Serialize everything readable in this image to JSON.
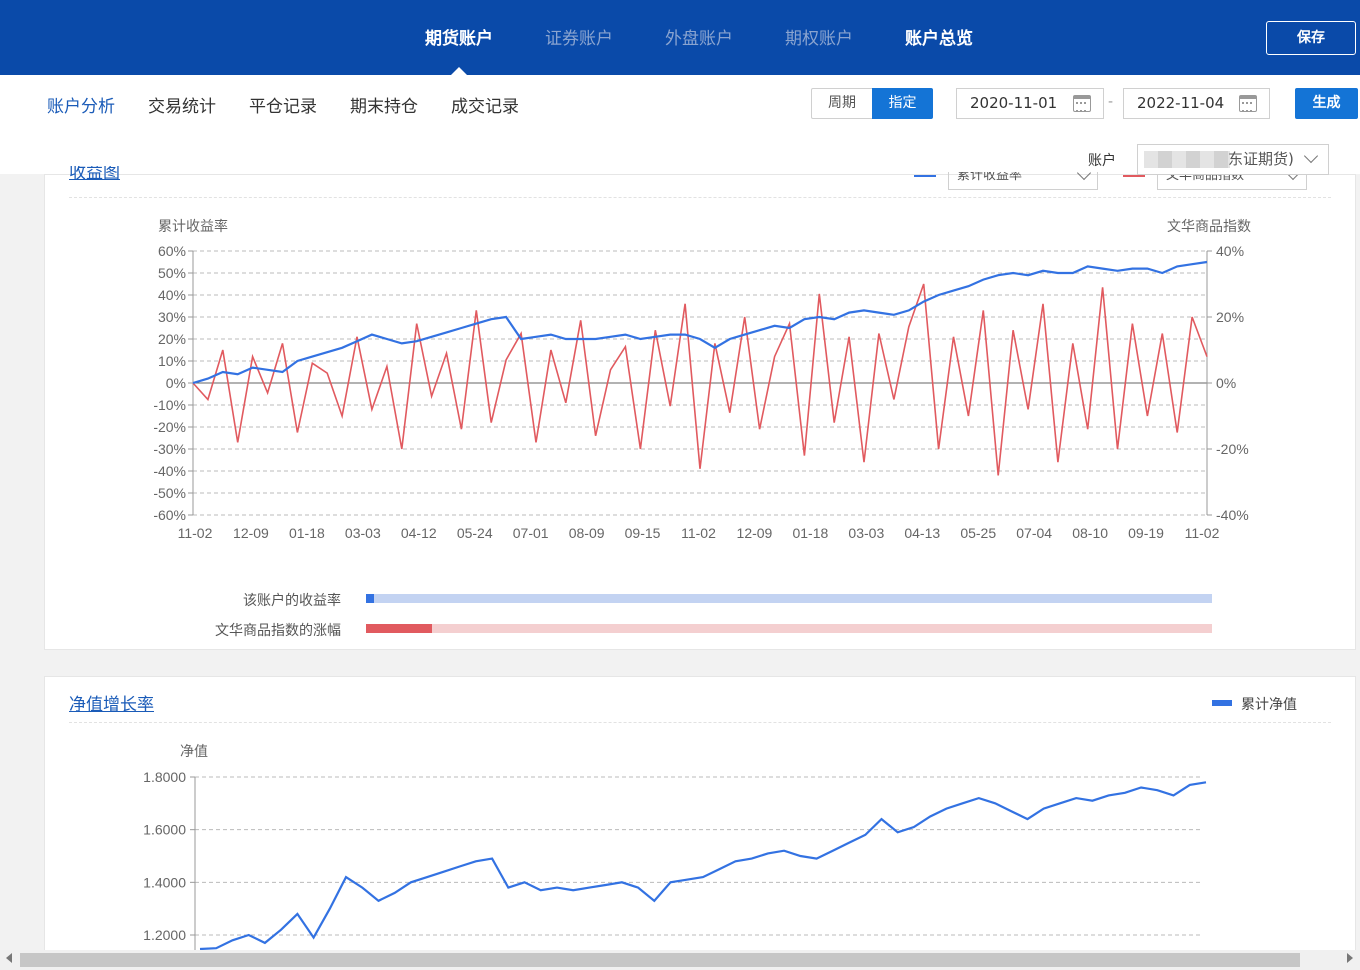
{
  "top_nav": {
    "tabs": [
      {
        "label": "期货账户",
        "active": true
      },
      {
        "label": "证券账户",
        "active": false
      },
      {
        "label": "外盘账户",
        "active": false
      },
      {
        "label": "期权账户",
        "active": false
      },
      {
        "label": "账户总览",
        "active": true
      }
    ],
    "save_label": "保存"
  },
  "sub_nav": {
    "tabs": [
      "账户分析",
      "交易统计",
      "平仓记录",
      "期末持仓",
      "成交记录"
    ],
    "active_index": 0
  },
  "period": {
    "options": [
      "周期",
      "指定"
    ],
    "selected": "指定"
  },
  "date_range": {
    "start": "2020-11-01",
    "separator": "-",
    "end": "2022-11-04"
  },
  "generate_label": "生成",
  "account": {
    "label": "账户",
    "value_visible": "东证期货)"
  },
  "colors": {
    "nav_bg": "#0a4aa9",
    "accent": "#1474d6",
    "series_blue": "#3372e2",
    "series_red": "#e15a5f"
  },
  "card1": {
    "title": "收益图",
    "legend": [
      {
        "name": "累计收益率",
        "color": "#3372e2"
      },
      {
        "name": "文华商品指数",
        "color": "#e15a5f"
      }
    ],
    "bars": [
      {
        "label": "该账户的收益率",
        "fraction": 0.01,
        "color": "#3372e2",
        "track": "#c3d3f2"
      },
      {
        "label": "文华商品指数的涨幅",
        "fraction": 0.078,
        "color": "#e15a5f",
        "track": "#f4cfd0"
      }
    ]
  },
  "card2": {
    "title": "净值增长率",
    "legend": [
      {
        "name": "累计净值",
        "color": "#3372e2"
      }
    ]
  },
  "chart_data": [
    {
      "type": "line",
      "title": "收益图",
      "ylabel": "累计收益率",
      "y2label": "文华商品指数",
      "ylim": [
        -60,
        60
      ],
      "y2lim": [
        -40,
        40
      ],
      "y_ticks": [
        "60%",
        "50%",
        "40%",
        "30%",
        "20%",
        "10%",
        "0%",
        "-10%",
        "-20%",
        "-30%",
        "-40%",
        "-50%",
        "-60%"
      ],
      "y2_ticks": [
        "40%",
        "20%",
        "0%",
        "-20%",
        "-40%"
      ],
      "x_ticks": [
        "11-02",
        "12-09",
        "01-18",
        "03-03",
        "04-12",
        "05-24",
        "07-01",
        "08-09",
        "09-15",
        "11-02",
        "12-09",
        "01-18",
        "03-03",
        "04-13",
        "05-25",
        "07-04",
        "08-10",
        "09-19",
        "11-02"
      ],
      "grid": true,
      "legend_position": "top-right",
      "series": [
        {
          "name": "累计收益率",
          "axis": "left",
          "values": [
            0,
            2,
            5,
            4,
            7,
            6,
            5,
            10,
            12,
            14,
            16,
            19,
            22,
            20,
            18,
            19,
            21,
            23,
            25,
            27,
            29,
            30,
            20,
            21,
            22,
            20,
            20,
            20,
            21,
            22,
            20,
            21,
            22,
            22,
            20,
            16,
            20,
            22,
            24,
            26,
            25,
            29,
            30,
            29,
            32,
            33,
            32,
            31,
            33,
            37,
            40,
            42,
            44,
            47,
            49,
            50,
            49,
            51,
            50,
            50,
            53,
            52,
            51,
            52,
            52,
            50,
            53,
            54,
            55
          ]
        },
        {
          "name": "文华商品指数",
          "axis": "right",
          "values": [
            0,
            -5,
            10,
            -18,
            8,
            -3,
            12,
            -15,
            6,
            3,
            -10,
            14,
            -8,
            5,
            -20,
            18,
            -4,
            9,
            -14,
            22,
            -12,
            7,
            15,
            -18,
            10,
            -6,
            19,
            -16,
            4,
            11,
            -20,
            16,
            -7,
            24,
            -26,
            12,
            -9,
            20,
            -14,
            8,
            18,
            -22,
            27,
            -12,
            14,
            -24,
            15,
            -5,
            17,
            30,
            -20,
            14,
            -10,
            22,
            -28,
            16,
            -8,
            24,
            -24,
            12,
            -14,
            29,
            -20,
            18,
            -10,
            15,
            -15,
            20,
            8
          ]
        }
      ]
    },
    {
      "type": "line",
      "title": "净值增长率",
      "ylabel": "净值",
      "ylim": [
        1.15,
        1.8
      ],
      "y_ticks": [
        "1.8000",
        "1.6000",
        "1.4000",
        "1.2000"
      ],
      "grid": true,
      "legend_position": "top-right",
      "series": [
        {
          "name": "累计净值",
          "values": [
            1.14,
            1.15,
            1.18,
            1.2,
            1.17,
            1.22,
            1.28,
            1.19,
            1.3,
            1.42,
            1.38,
            1.33,
            1.36,
            1.4,
            1.42,
            1.44,
            1.46,
            1.48,
            1.49,
            1.38,
            1.4,
            1.37,
            1.38,
            1.37,
            1.38,
            1.39,
            1.4,
            1.38,
            1.33,
            1.4,
            1.41,
            1.42,
            1.45,
            1.48,
            1.49,
            1.51,
            1.52,
            1.5,
            1.49,
            1.52,
            1.55,
            1.58,
            1.64,
            1.59,
            1.61,
            1.65,
            1.68,
            1.7,
            1.72,
            1.7,
            1.67,
            1.64,
            1.68,
            1.7,
            1.72,
            1.71,
            1.73,
            1.74,
            1.76,
            1.75,
            1.73,
            1.77,
            1.78
          ]
        }
      ]
    }
  ]
}
